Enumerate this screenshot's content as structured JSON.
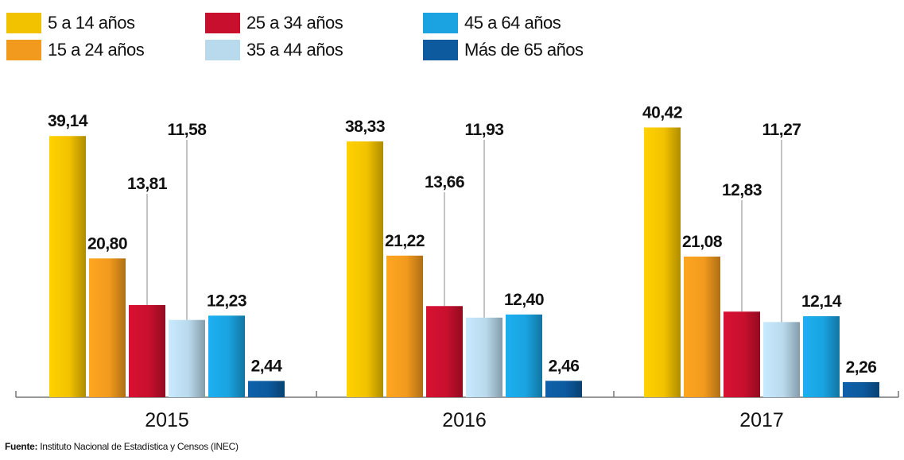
{
  "chart_data": {
    "type": "bar",
    "categories": [
      "2015",
      "2016",
      "2017"
    ],
    "series": [
      {
        "name": "5 a 14 años",
        "color": "#f2c200",
        "values": [
          39.14,
          38.33,
          40.42
        ],
        "labels": [
          "39,14",
          "38,33",
          "40,42"
        ]
      },
      {
        "name": "15 a 24 años",
        "color": "#f29a1e",
        "values": [
          20.8,
          21.22,
          21.08
        ],
        "labels": [
          "20,80",
          "21,22",
          "21,08"
        ]
      },
      {
        "name": "25 a 34 años",
        "color": "#c8102e",
        "values": [
          13.81,
          13.66,
          12.83
        ],
        "labels": [
          "13,81",
          "13,66",
          "12,83"
        ]
      },
      {
        "name": "35 a 44 años",
        "color": "#b9d9ec",
        "values": [
          11.58,
          11.93,
          11.27
        ],
        "labels": [
          "11,58",
          "11,93",
          "11,27"
        ]
      },
      {
        "name": "45 a 64 años",
        "color": "#1aa3e0",
        "values": [
          12.23,
          12.4,
          12.14
        ],
        "labels": [
          "12,23",
          "12,40",
          "12,14"
        ]
      },
      {
        "name": "Más de 65 años",
        "color": "#0d5a9e",
        "values": [
          2.44,
          2.46,
          2.26
        ],
        "labels": [
          "2,44",
          "2,46",
          "2,26"
        ]
      }
    ],
    "title": "",
    "xlabel": "",
    "ylabel": "",
    "ylim": [
      0,
      42
    ],
    "grid": false,
    "legend_position": "top"
  },
  "source": {
    "label": "Fuente:",
    "text": " Instituto Nacional de Estadística y Censos (INEC)"
  }
}
